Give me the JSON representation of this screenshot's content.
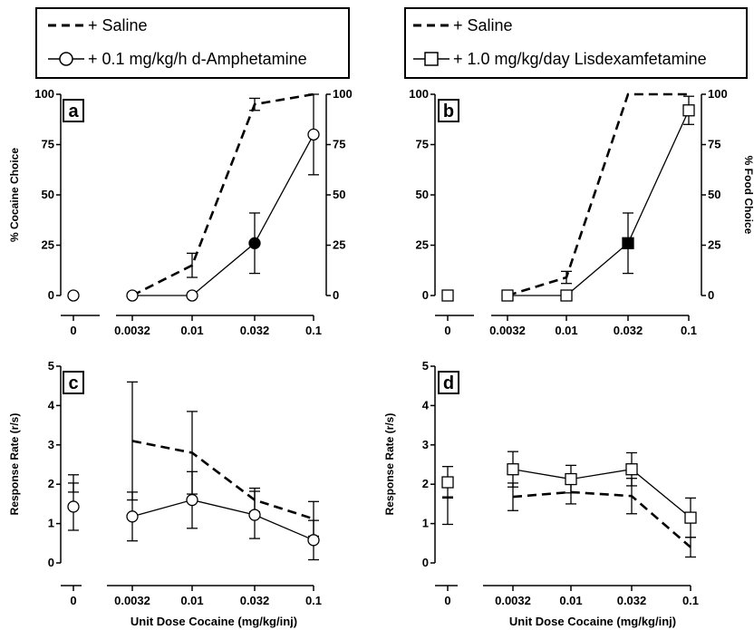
{
  "legends": [
    {
      "entries": [
        {
          "label": "+ Saline",
          "style": "dashed"
        },
        {
          "label": "+ 0.1 mg/kg/h d-Amphetamine",
          "style": "circle"
        }
      ]
    },
    {
      "entries": [
        {
          "label": "+ Saline",
          "style": "dashed"
        },
        {
          "label": "+ 1.0 mg/kg/day Lisdexamfetamine",
          "style": "square"
        }
      ]
    }
  ],
  "chart_data": [
    {
      "panel": "a",
      "type": "line",
      "ylabel": "% Cocaine Choice",
      "y2label": "",
      "ylim": [
        0,
        100
      ],
      "y_ticks": [
        0,
        25,
        50,
        75,
        100
      ],
      "y2_ticks": [
        "0",
        "25",
        "50",
        "75",
        "100"
      ],
      "x_categories": [
        "0",
        "0.0032",
        "0.01",
        "0.032",
        "0.1"
      ],
      "series": [
        {
          "style": "dashed",
          "values": [
            null,
            0,
            15,
            95,
            100
          ],
          "err": [
            null,
            0,
            6,
            3,
            0
          ]
        },
        {
          "style": "circle",
          "values": [
            0,
            0,
            0,
            26,
            80
          ],
          "err": [
            0,
            0,
            0,
            15,
            20
          ],
          "filled": [
            false,
            false,
            false,
            true,
            false
          ]
        }
      ]
    },
    {
      "panel": "b",
      "type": "line",
      "ylabel": "",
      "y2label": "% Food Choice",
      "ylim": [
        0,
        100
      ],
      "y_ticks": [
        0,
        25,
        50,
        75,
        100
      ],
      "y2_ticks": [
        "0",
        "25",
        "50",
        "75",
        "100"
      ],
      "x_categories": [
        "0",
        "0.0032",
        "0.01",
        "0.032",
        "0.1"
      ],
      "series": [
        {
          "style": "dashed",
          "values": [
            null,
            0,
            9,
            100,
            100
          ],
          "err": [
            null,
            0,
            3,
            0,
            0
          ]
        },
        {
          "style": "square",
          "values": [
            0,
            0,
            0,
            26,
            92
          ],
          "err": [
            0,
            0,
            0,
            15,
            7
          ],
          "filled": [
            false,
            false,
            false,
            true,
            false
          ]
        }
      ]
    },
    {
      "panel": "c",
      "type": "line",
      "ylabel": "Response Rate (r/s)",
      "xlabel": "Unit Dose Cocaine (mg/kg/inj)",
      "ylim": [
        0,
        5
      ],
      "y_ticks": [
        0,
        1,
        2,
        3,
        4,
        5
      ],
      "x_categories": [
        "0",
        "0.0032",
        "0.01",
        "0.032",
        "0.1"
      ],
      "series": [
        {
          "style": "dashed",
          "values": [
            2.02,
            3.1,
            2.8,
            1.6,
            1.12
          ],
          "err": [
            0.22,
            1.5,
            1.05,
            0.3,
            0.44
          ]
        },
        {
          "style": "circle",
          "values": [
            1.43,
            1.18,
            1.6,
            1.22,
            0.58
          ],
          "err": [
            0.6,
            0.62,
            0.72,
            0.6,
            0.5
          ]
        }
      ]
    },
    {
      "panel": "d",
      "type": "line",
      "ylabel": "Response Rate (r/s)",
      "xlabel": "Unit Dose Cocaine (mg/kg/inj)",
      "ylim": [
        0,
        5
      ],
      "y_ticks": [
        0,
        1,
        2,
        3,
        4,
        5
      ],
      "x_categories": [
        "0",
        "0.0032",
        "0.01",
        "0.032",
        "0.1"
      ],
      "series": [
        {
          "style": "dashed",
          "values": [
            1.33,
            1.68,
            1.8,
            1.7,
            0.4
          ],
          "err": [
            0.35,
            0.35,
            0.3,
            0.45,
            0.25
          ]
        },
        {
          "style": "square",
          "values": [
            2.05,
            2.38,
            2.13,
            2.38,
            1.15
          ],
          "err": [
            0.4,
            0.45,
            0.35,
            0.42,
            0.5
          ]
        }
      ]
    }
  ]
}
